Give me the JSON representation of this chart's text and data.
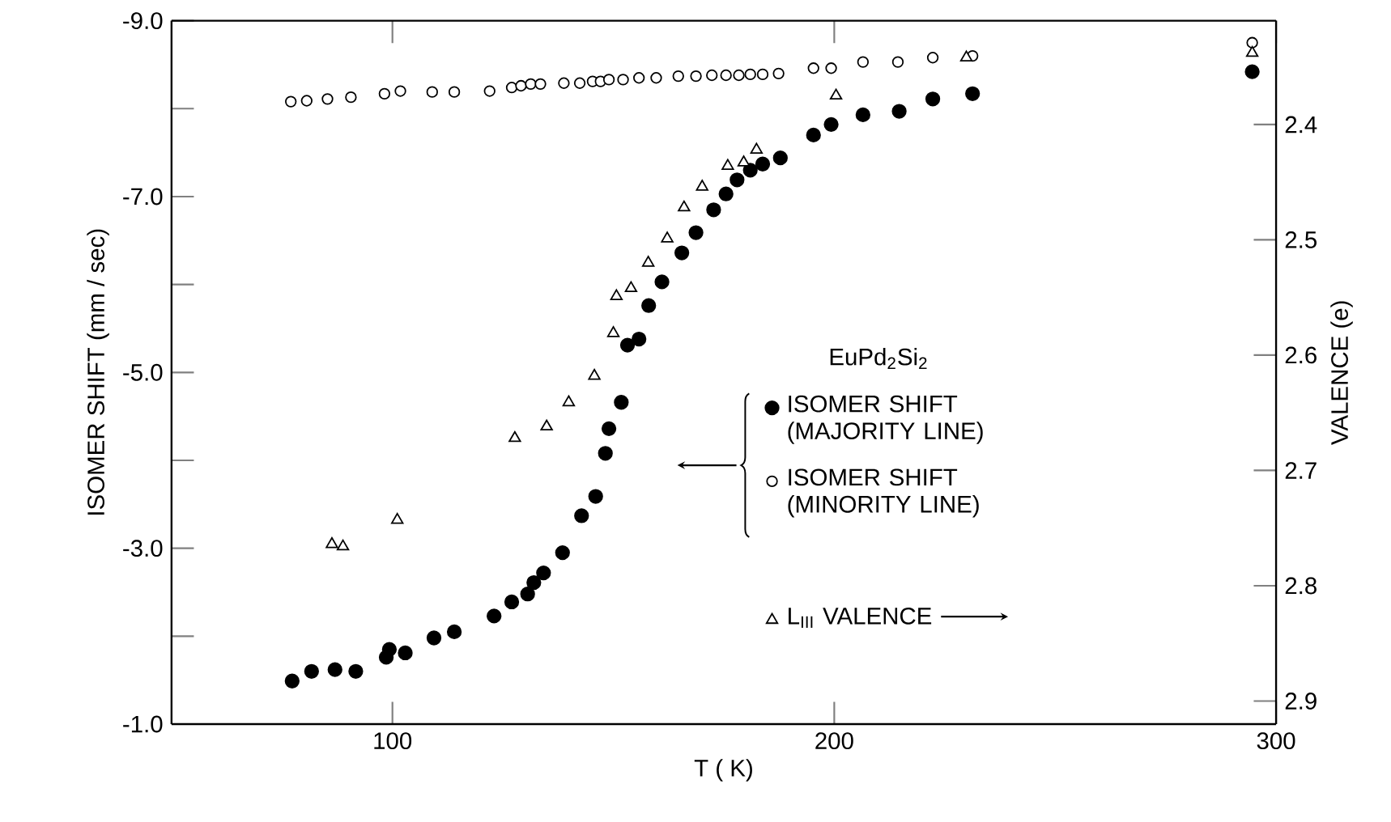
{
  "chart_data": {
    "type": "scatter",
    "annotations": [
      "EuPd$_{2}$Si$_{2}$"
    ],
    "xlabel": "T ( K)",
    "ylabel": "ISOMER SHIFT  (mm / sec)",
    "y2label": "VALENCE  (e)",
    "xlim": [
      50,
      300
    ],
    "xticks": [
      100,
      200,
      300
    ],
    "ylim": [
      -1,
      -9
    ],
    "yticks": [
      {
        "value": -9,
        "label": "-9.0"
      },
      {
        "value": -8,
        "label": null
      },
      {
        "value": -7,
        "label": "-7.0"
      },
      {
        "value": -6,
        "label": null
      },
      {
        "value": -5,
        "label": "-5.0"
      },
      {
        "value": -4,
        "label": null
      },
      {
        "value": -3,
        "label": "-3.0"
      },
      {
        "value": -2,
        "label": null
      },
      {
        "value": -1,
        "label": "-1.0"
      }
    ],
    "y2lim": [
      2.92,
      2.31
    ],
    "y2ticks": [
      2.4,
      2.5,
      2.6,
      2.7,
      2.8,
      2.9
    ],
    "legend": "right",
    "series": [
      {
        "name": "ISOMER SHIFT (MAJORITY LINE)",
        "color": "#000000",
        "marker": "circle",
        "x": [
          77.3,
          81.7,
          87,
          91.7,
          98.6,
          99.3,
          102.9,
          109.4,
          114,
          123,
          127,
          130.6,
          132,
          134.2,
          138.5,
          142.8,
          146,
          148.2,
          149,
          151.8,
          153.2,
          155.8,
          158,
          161,
          165.5,
          168.7,
          172.7,
          175.5,
          178,
          181,
          183.8,
          187.8,
          195.3,
          199.3,
          206.5,
          214.7,
          222.3,
          231.3,
          294.6
        ],
        "values": [
          -1.49,
          -1.6,
          -1.62,
          -1.6,
          -1.76,
          -1.85,
          -1.81,
          -1.98,
          -2.05,
          -2.23,
          -2.39,
          -2.48,
          -2.61,
          -2.72,
          -2.95,
          -3.37,
          -3.59,
          -4.08,
          -4.36,
          -4.66,
          -5.31,
          -5.38,
          -5.76,
          -6.03,
          -6.36,
          -6.59,
          -6.85,
          -7.03,
          -7.19,
          -7.3,
          -7.37,
          -7.44,
          -7.7,
          -7.82,
          -7.93,
          -7.97,
          -8.11,
          -8.17,
          -8.42
        ]
      },
      {
        "name": "ISOMER SHIFT (MINORITY LINE)",
        "color": "#000000",
        "marker": "circle",
        "x": [
          77,
          80.6,
          85.3,
          90.6,
          98.2,
          101.8,
          109,
          114,
          122,
          127,
          129.1,
          131.3,
          133.5,
          138.8,
          142.4,
          145.3,
          147.1,
          149,
          152.2,
          155.8,
          159.7,
          164.7,
          168.7,
          172.3,
          175.5,
          178.4,
          181,
          183.8,
          187.4,
          195.3,
          199.3,
          206.5,
          214.4,
          222.3,
          231.3,
          294.6
        ],
        "values": [
          -8.08,
          -8.09,
          -8.11,
          -8.13,
          -8.17,
          -8.2,
          -8.19,
          -8.19,
          -8.2,
          -8.24,
          -8.26,
          -8.28,
          -8.28,
          -8.29,
          -8.29,
          -8.31,
          -8.31,
          -8.33,
          -8.33,
          -8.35,
          -8.35,
          -8.37,
          -8.37,
          -8.38,
          -8.38,
          -8.38,
          -8.39,
          -8.39,
          -8.4,
          -8.46,
          -8.46,
          -8.53,
          -8.53,
          -8.58,
          -8.6,
          -8.75
        ]
      },
      {
        "name": "L$_{III}$ VALENCE",
        "color": "#000000",
        "marker": "triangle",
        "axis": "y2",
        "x": [
          86.3,
          88.8,
          101.1,
          127.7,
          134.9,
          139.9,
          145.7,
          150,
          150.7,
          154,
          157.9,
          162.2,
          166,
          170.1,
          175.9,
          179.5,
          182.4,
          200.4,
          229.9,
          294.6
        ],
        "values": [
          2.764,
          2.766,
          2.743,
          2.672,
          2.662,
          2.641,
          2.618,
          2.581,
          2.549,
          2.542,
          2.52,
          2.499,
          2.472,
          2.454,
          2.436,
          2.433,
          2.422,
          2.375,
          2.342,
          2.338
        ]
      }
    ]
  }
}
